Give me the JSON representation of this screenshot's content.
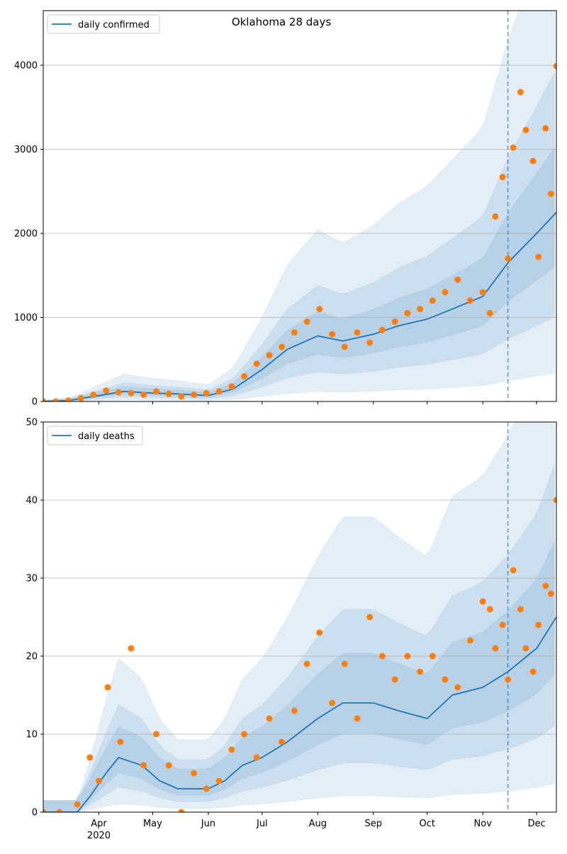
{
  "chart_data": [
    {
      "type": "scatter",
      "panel": "top",
      "title": "Oklahoma 28 days",
      "xlabel": "",
      "ylabel": "",
      "ylim": [
        0,
        4650
      ],
      "yticks": [
        0,
        1000,
        2000,
        3000,
        4000
      ],
      "ytick_labels": [
        "0",
        "1000",
        "2000",
        "3000",
        "4000"
      ],
      "grid": "horizontal",
      "legend_position": "top-left",
      "colors": {
        "line": "#1f77b4",
        "points": "#ff7f0e",
        "band": "#1f77b4",
        "vline": "#1f77b4"
      },
      "vline_date": "2020-11-15",
      "series": [
        {
          "name": "daily confirmed",
          "kind": "line",
          "x": [
            "2020-03-01",
            "2020-03-15",
            "2020-04-01",
            "2020-04-15",
            "2020-05-01",
            "2020-05-15",
            "2020-06-01",
            "2020-06-15",
            "2020-07-01",
            "2020-07-15",
            "2020-08-01",
            "2020-08-15",
            "2020-09-01",
            "2020-09-15",
            "2020-10-01",
            "2020-10-15",
            "2020-11-01",
            "2020-11-15",
            "2020-12-01",
            "2020-12-12"
          ],
          "y": [
            0,
            10,
            70,
            120,
            100,
            90,
            70,
            150,
            380,
            620,
            780,
            720,
            800,
            900,
            980,
            1100,
            1250,
            1650,
            2000,
            2250
          ]
        },
        {
          "name": "daily confirmed observations",
          "kind": "points",
          "x": [
            "2020-03-01",
            "2020-03-08",
            "2020-03-15",
            "2020-03-22",
            "2020-03-29",
            "2020-04-05",
            "2020-04-12",
            "2020-04-19",
            "2020-04-26",
            "2020-05-03",
            "2020-05-10",
            "2020-05-17",
            "2020-05-24",
            "2020-05-31",
            "2020-06-07",
            "2020-06-14",
            "2020-06-21",
            "2020-06-28",
            "2020-07-05",
            "2020-07-12",
            "2020-07-19",
            "2020-07-26",
            "2020-08-02",
            "2020-08-09",
            "2020-08-16",
            "2020-08-23",
            "2020-08-30",
            "2020-09-06",
            "2020-09-13",
            "2020-09-20",
            "2020-09-27",
            "2020-10-04",
            "2020-10-11",
            "2020-10-18",
            "2020-10-25",
            "2020-11-01",
            "2020-11-05",
            "2020-11-08",
            "2020-11-12",
            "2020-11-15",
            "2020-11-18",
            "2020-11-22",
            "2020-11-25",
            "2020-11-29",
            "2020-12-02",
            "2020-12-06",
            "2020-12-09",
            "2020-12-12"
          ],
          "y": [
            0,
            0,
            10,
            40,
            80,
            130,
            110,
            100,
            80,
            120,
            90,
            60,
            80,
            100,
            120,
            180,
            300,
            450,
            550,
            650,
            820,
            950,
            1100,
            800,
            650,
            820,
            700,
            850,
            950,
            1050,
            1100,
            1200,
            1300,
            1450,
            1200,
            1300,
            1050,
            2200,
            2670,
            1700,
            3020,
            3680,
            3230,
            2860,
            1720,
            3250,
            2470,
            3990
          ]
        }
      ]
    },
    {
      "type": "scatter",
      "panel": "bottom",
      "title": "",
      "xlabel": "",
      "ylabel": "",
      "ylim": [
        0,
        50
      ],
      "yticks": [
        0,
        10,
        20,
        30,
        40,
        50
      ],
      "ytick_labels": [
        "0",
        "10",
        "20",
        "30",
        "40",
        "50"
      ],
      "xtick_labels": [
        "Apr",
        "May",
        "Jun",
        "Jul",
        "Aug",
        "Sep",
        "Oct",
        "Nov",
        "Dec"
      ],
      "xtick_dates": [
        "2020-04-01",
        "2020-05-01",
        "2020-06-01",
        "2020-07-01",
        "2020-08-01",
        "2020-09-01",
        "2020-10-01",
        "2020-11-01",
        "2020-12-01"
      ],
      "x_year_label": "2020",
      "xlim": [
        "2020-03-01",
        "2020-12-12"
      ],
      "grid": "horizontal",
      "legend_position": "top-left",
      "colors": {
        "line": "#1f77b4",
        "points": "#ff7f0e",
        "band": "#1f77b4",
        "vline": "#1f77b4"
      },
      "vline_date": "2020-11-15",
      "series": [
        {
          "name": "daily deaths",
          "kind": "line",
          "x": [
            "2020-03-01",
            "2020-03-20",
            "2020-03-27",
            "2020-04-05",
            "2020-04-12",
            "2020-04-25",
            "2020-05-05",
            "2020-05-15",
            "2020-06-01",
            "2020-06-10",
            "2020-06-20",
            "2020-07-01",
            "2020-07-15",
            "2020-08-01",
            "2020-08-15",
            "2020-09-01",
            "2020-09-15",
            "2020-10-01",
            "2020-10-15",
            "2020-11-01",
            "2020-11-15",
            "2020-12-01",
            "2020-12-12"
          ],
          "y": [
            0,
            0,
            2,
            5,
            7,
            6,
            4,
            3,
            3,
            4,
            6,
            7,
            9,
            12,
            14,
            14,
            13,
            12,
            15,
            16,
            18,
            21,
            25
          ]
        },
        {
          "name": "daily deaths observations",
          "kind": "points",
          "x": [
            "2020-03-01",
            "2020-03-10",
            "2020-03-20",
            "2020-03-27",
            "2020-04-01",
            "2020-04-06",
            "2020-04-13",
            "2020-04-19",
            "2020-04-26",
            "2020-05-03",
            "2020-05-10",
            "2020-05-17",
            "2020-05-24",
            "2020-05-31",
            "2020-06-07",
            "2020-06-14",
            "2020-06-21",
            "2020-06-28",
            "2020-07-05",
            "2020-07-12",
            "2020-07-19",
            "2020-07-26",
            "2020-08-02",
            "2020-08-09",
            "2020-08-16",
            "2020-08-23",
            "2020-08-30",
            "2020-09-06",
            "2020-09-13",
            "2020-09-20",
            "2020-09-27",
            "2020-10-04",
            "2020-10-11",
            "2020-10-18",
            "2020-10-25",
            "2020-11-01",
            "2020-11-05",
            "2020-11-08",
            "2020-11-12",
            "2020-11-15",
            "2020-11-18",
            "2020-11-22",
            "2020-11-25",
            "2020-11-29",
            "2020-12-02",
            "2020-12-06",
            "2020-12-09",
            "2020-12-12"
          ],
          "y": [
            0,
            0,
            1,
            7,
            4,
            16,
            9,
            21,
            6,
            10,
            6,
            0,
            5,
            3,
            4,
            8,
            10,
            7,
            12,
            9,
            13,
            19,
            23,
            14,
            19,
            12,
            25,
            20,
            17,
            20,
            18,
            20,
            17,
            16,
            22,
            27,
            26,
            21,
            24,
            17,
            31,
            26,
            21,
            18,
            24,
            29,
            28,
            40
          ]
        }
      ]
    }
  ]
}
